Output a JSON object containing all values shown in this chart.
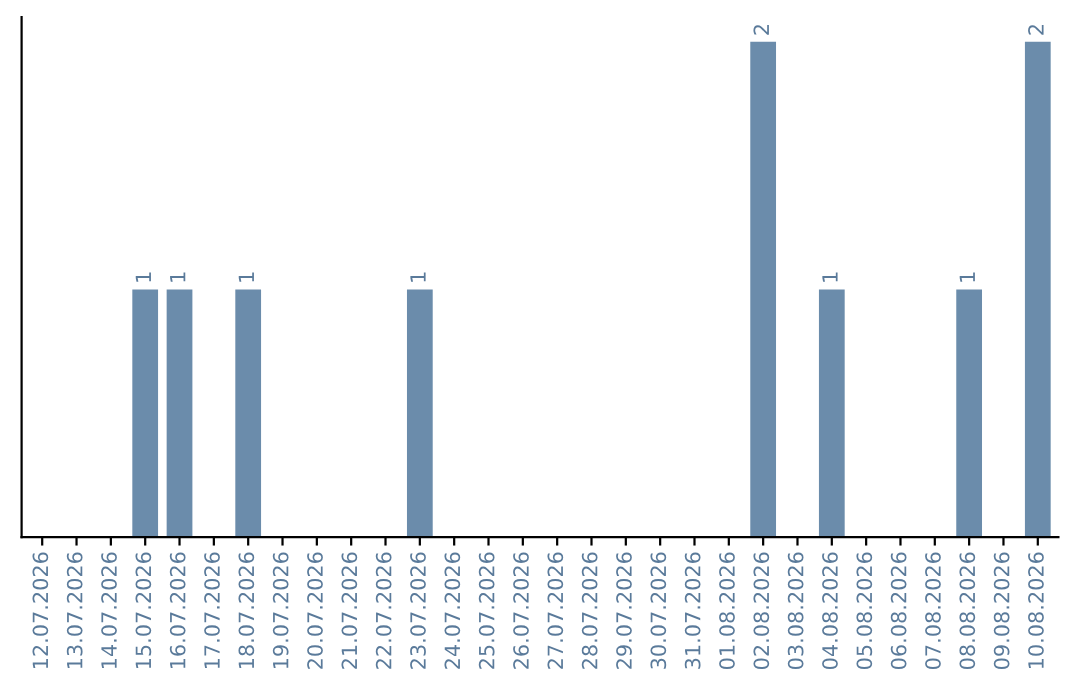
{
  "chart_data": {
    "type": "bar",
    "categories": [
      "12.07.2026",
      "13.07.2026",
      "14.07.2026",
      "15.07.2026",
      "16.07.2026",
      "17.07.2026",
      "18.07.2026",
      "19.07.2026",
      "20.07.2026",
      "21.07.2026",
      "22.07.2026",
      "23.07.2026",
      "24.07.2026",
      "25.07.2026",
      "26.07.2026",
      "27.07.2026",
      "28.07.2026",
      "29.07.2026",
      "30.07.2026",
      "31.07.2026",
      "01.08.2026",
      "02.08.2026",
      "03.08.2026",
      "04.08.2026",
      "05.08.2026",
      "06.08.2026",
      "07.08.2026",
      "08.08.2026",
      "09.08.2026",
      "10.08.2026"
    ],
    "values": [
      0,
      0,
      0,
      1,
      1,
      0,
      1,
      0,
      0,
      0,
      0,
      1,
      0,
      0,
      0,
      0,
      0,
      0,
      0,
      0,
      0,
      2,
      0,
      1,
      0,
      0,
      0,
      1,
      0,
      2
    ],
    "value_labels": [
      null,
      null,
      null,
      "1",
      "1",
      null,
      "1",
      null,
      null,
      null,
      null,
      "1",
      null,
      null,
      null,
      null,
      null,
      null,
      null,
      null,
      null,
      "2",
      null,
      "1",
      null,
      null,
      null,
      "1",
      null,
      "2"
    ],
    "color": "#6b8cab",
    "tick_labels": "x",
    "grid": false,
    "legend": false
  }
}
